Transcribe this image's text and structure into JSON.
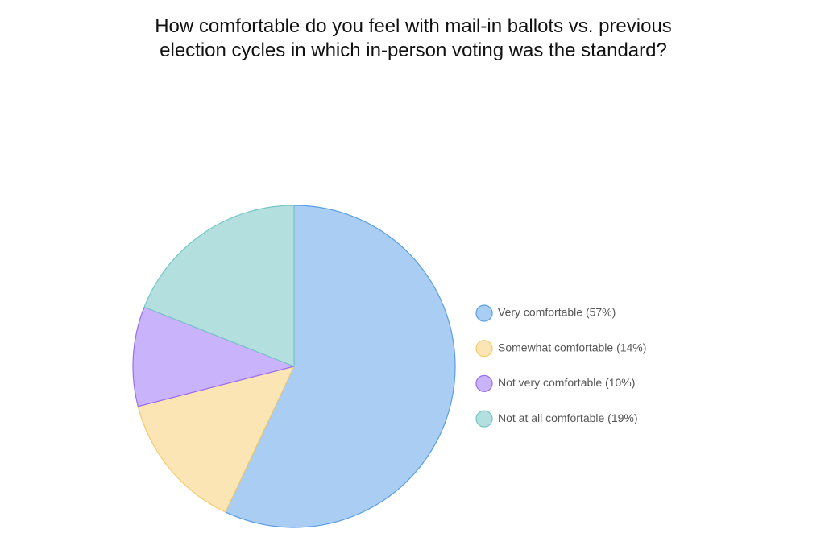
{
  "chart_data": {
    "type": "pie",
    "title": "How comfortable do you feel with mail-in ballots vs. previous election cycles in which in-person voting was the standard?",
    "categories": [
      "Very comfortable (57%)",
      "Somewhat comfortable (14%)",
      "Not very comfortable (10%)",
      "Not at all comfortable (19%)"
    ],
    "values": [
      57,
      14,
      10,
      19
    ],
    "colors": [
      "#aacdf3",
      "#fbe5b5",
      "#c9b3fb",
      "#b4dfdf"
    ],
    "edge_colors": [
      "#5a9ee6",
      "#f2cb6b",
      "#9a6ef0",
      "#76c6c6"
    ],
    "legend": "right"
  }
}
